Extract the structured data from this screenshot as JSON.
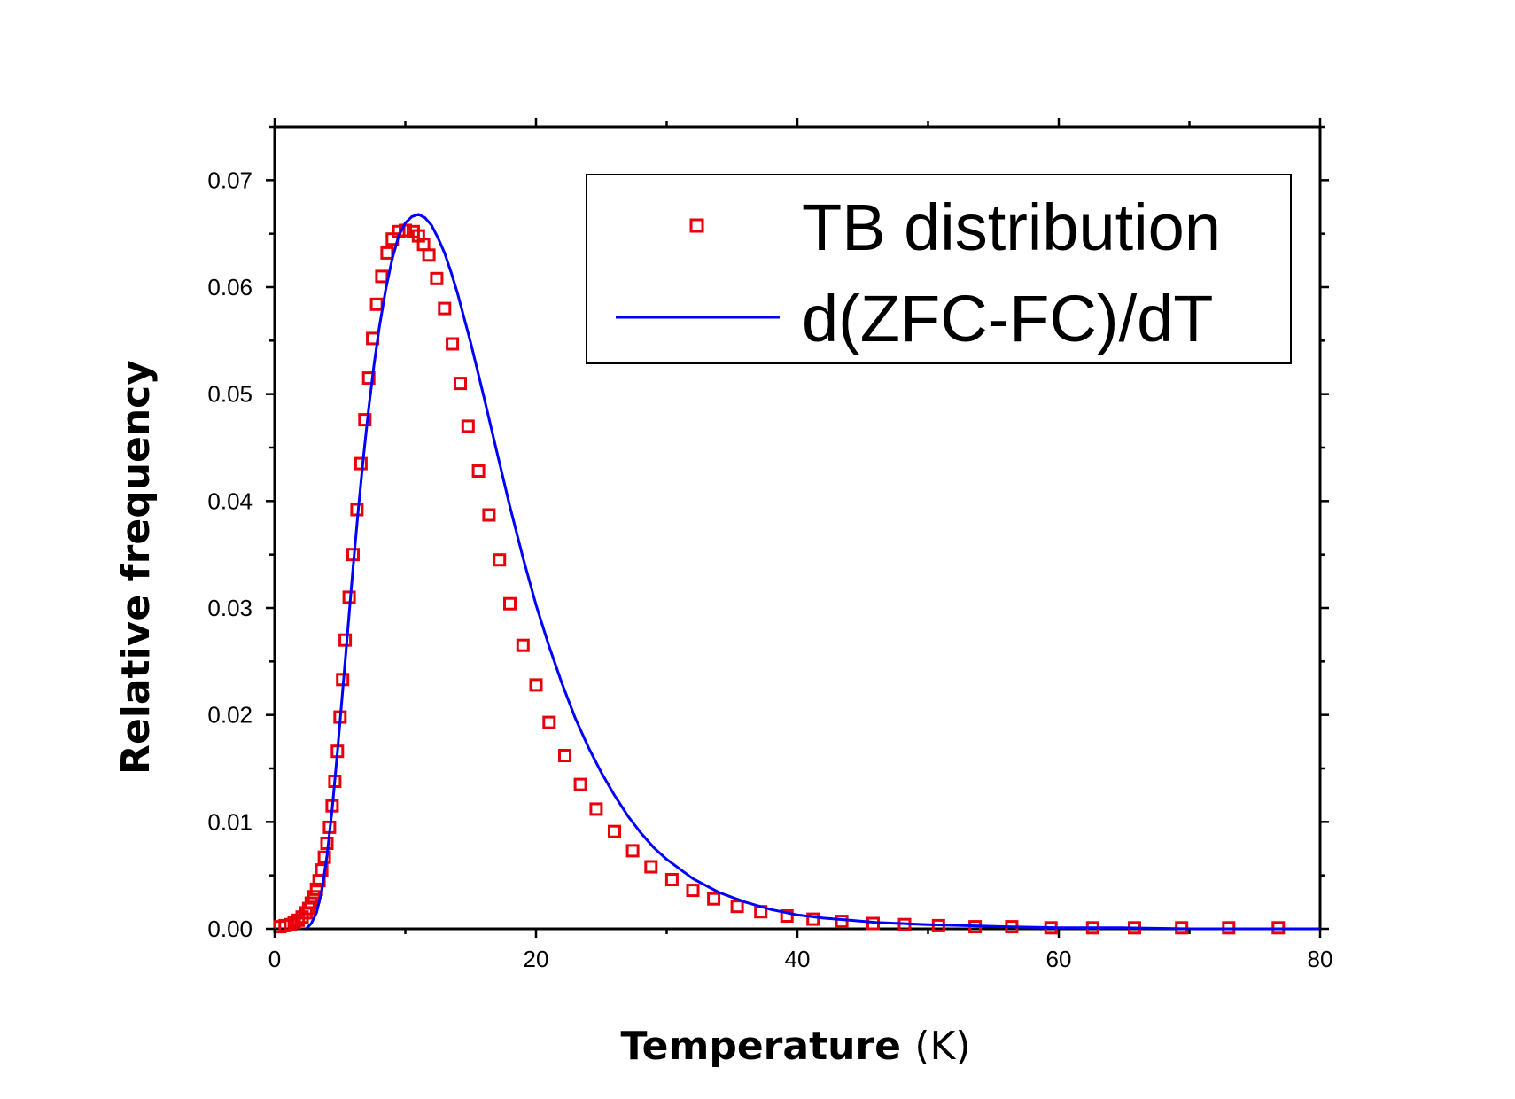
{
  "chart_data": {
    "type": "scatter",
    "title": "",
    "xlabel": "Temperature",
    "xlabel_unit": "(K)",
    "ylabel": "Relative frequency",
    "xlim": [
      0,
      80
    ],
    "ylim": [
      0,
      0.075
    ],
    "xticks": [
      0,
      20,
      40,
      60,
      80
    ],
    "xtick_labels": [
      "0",
      "20",
      "40",
      "60",
      "80"
    ],
    "yticks": [
      0,
      0.01,
      0.02,
      0.03,
      0.04,
      0.05,
      0.06,
      0.07
    ],
    "ytick_labels": [
      "0.00",
      "0.01",
      "0.02",
      "0.03",
      "0.04",
      "0.05",
      "0.06",
      "0.07"
    ],
    "grid": false,
    "legend_position": "top-right",
    "series": [
      {
        "name": "TB distribution",
        "kind": "markers",
        "marker": "open-square",
        "color": "#e8000b",
        "x": [
          0.4,
          0.8,
          1.2,
          1.5,
          1.8,
          2.1,
          2.4,
          2.6,
          2.8,
          3.0,
          3.2,
          3.4,
          3.6,
          3.8,
          4.0,
          4.2,
          4.4,
          4.6,
          4.8,
          5.0,
          5.2,
          5.4,
          5.7,
          6.0,
          6.3,
          6.6,
          6.9,
          7.2,
          7.5,
          7.8,
          8.2,
          8.6,
          9.0,
          9.5,
          10.0,
          10.6,
          11.0,
          11.4,
          11.8,
          12.4,
          13.0,
          13.6,
          14.2,
          14.8,
          15.6,
          16.4,
          17.2,
          18.0,
          19.0,
          20.0,
          21.0,
          22.2,
          23.4,
          24.6,
          26.0,
          27.4,
          28.8,
          30.4,
          32.0,
          33.6,
          35.4,
          37.2,
          39.2,
          41.2,
          43.4,
          45.8,
          48.2,
          50.8,
          53.6,
          56.4,
          59.4,
          62.6,
          65.8,
          69.4,
          73.0,
          76.8
        ],
        "y": [
          0.0002,
          0.0003,
          0.0004,
          0.0006,
          0.0008,
          0.0011,
          0.0015,
          0.0019,
          0.0024,
          0.003,
          0.0037,
          0.0045,
          0.0055,
          0.0067,
          0.008,
          0.0095,
          0.0115,
          0.0138,
          0.0166,
          0.0198,
          0.0233,
          0.027,
          0.031,
          0.035,
          0.0392,
          0.0435,
          0.0476,
          0.0515,
          0.0552,
          0.0584,
          0.061,
          0.0632,
          0.0645,
          0.0652,
          0.0653,
          0.0652,
          0.0648,
          0.064,
          0.063,
          0.0608,
          0.058,
          0.0547,
          0.051,
          0.047,
          0.0428,
          0.0387,
          0.0345,
          0.0304,
          0.0265,
          0.0228,
          0.0193,
          0.0162,
          0.0135,
          0.0112,
          0.0091,
          0.0073,
          0.0058,
          0.0046,
          0.0036,
          0.0028,
          0.0021,
          0.0016,
          0.0012,
          0.0009,
          0.0007,
          0.0005,
          0.0004,
          0.0003,
          0.0002,
          0.0002,
          0.0001,
          0.0001,
          0.0001,
          0.0001,
          0.0001,
          0.0001
        ]
      },
      {
        "name": "d(ZFC-FC)/dT",
        "kind": "line",
        "color": "#0000ff",
        "x": [
          2.4,
          2.8,
          3.2,
          3.6,
          4.0,
          4.4,
          4.8,
          5.2,
          5.6,
          6.0,
          6.4,
          6.8,
          7.2,
          7.6,
          8.0,
          8.5,
          9.0,
          9.5,
          10.0,
          10.5,
          11.0,
          11.5,
          12.0,
          12.5,
          13.0,
          13.5,
          14.0,
          15.0,
          16.0,
          17.0,
          18.0,
          19.0,
          20.0,
          21.0,
          22.0,
          23.0,
          24.0,
          25.0,
          26.0,
          27.0,
          28.0,
          29.0,
          30.0,
          32.0,
          34.0,
          36.0,
          38.0,
          40.0,
          42.0,
          44.0,
          46.0,
          48.0,
          50.0,
          53.0,
          56.0,
          60.0,
          65.0,
          70.0,
          75.0,
          80.0
        ],
        "y": [
          0.0,
          0.0005,
          0.0015,
          0.0035,
          0.0068,
          0.0112,
          0.0165,
          0.0222,
          0.028,
          0.0338,
          0.0392,
          0.0442,
          0.0487,
          0.0527,
          0.0562,
          0.0598,
          0.0627,
          0.0648,
          0.066,
          0.0666,
          0.0668,
          0.0665,
          0.0658,
          0.0646,
          0.0632,
          0.0614,
          0.0594,
          0.0548,
          0.0498,
          0.0446,
          0.0395,
          0.0347,
          0.0303,
          0.0264,
          0.0229,
          0.0197,
          0.017,
          0.0146,
          0.0125,
          0.0106,
          0.009,
          0.0076,
          0.0065,
          0.0047,
          0.0034,
          0.0025,
          0.0018,
          0.0013,
          0.001,
          0.0008,
          0.0006,
          0.0005,
          0.0004,
          0.0003,
          0.0002,
          0.0001,
          0.0001,
          0.0,
          0.0,
          0.0
        ]
      }
    ]
  }
}
